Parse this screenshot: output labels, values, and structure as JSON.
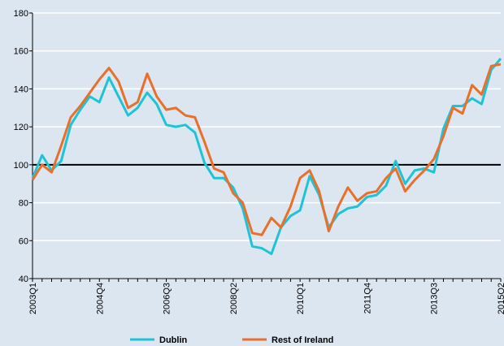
{
  "chart_data": {
    "type": "line",
    "categories": [
      "2003Q1",
      null,
      null,
      null,
      null,
      null,
      null,
      "2004Q4",
      null,
      null,
      null,
      null,
      null,
      null,
      "2006Q3",
      null,
      null,
      null,
      null,
      null,
      null,
      "2008Q2",
      null,
      null,
      null,
      null,
      null,
      null,
      "2010Q1",
      null,
      null,
      null,
      null,
      null,
      null,
      "2011Q4",
      null,
      null,
      null,
      null,
      null,
      null,
      "2013Q3",
      null,
      null,
      null,
      null,
      null,
      null,
      "2015Q2"
    ],
    "series": [
      {
        "name": "Dublin",
        "color": "#1ec3d6",
        "values": [
          93,
          105,
          97,
          102,
          121,
          129,
          136,
          133,
          146,
          136,
          126,
          130,
          138,
          132,
          121,
          120,
          121,
          117,
          101,
          93,
          93,
          88,
          77,
          57,
          56,
          53,
          67,
          73,
          76,
          94,
          84,
          67,
          74,
          77,
          78,
          83,
          84,
          89,
          102,
          90,
          97,
          98,
          96,
          119,
          131,
          131,
          135,
          132,
          150,
          156
        ]
      },
      {
        "name": "Rest of Ireland",
        "color": "#e8702a",
        "values": [
          92,
          100,
          96,
          110,
          125,
          131,
          138,
          145,
          151,
          144,
          130,
          133,
          148,
          136,
          129,
          130,
          126,
          125,
          112,
          98,
          96,
          85,
          80,
          64,
          63,
          72,
          67,
          78,
          93,
          97,
          86,
          65,
          78,
          88,
          81,
          85,
          86,
          93,
          98,
          86,
          92,
          97,
          103,
          115,
          130,
          127,
          142,
          137,
          152,
          153
        ]
      }
    ],
    "ylim": [
      40,
      180
    ],
    "yticks": [
      40,
      60,
      80,
      100,
      120,
      140,
      160,
      180
    ],
    "reference_line": 100,
    "grid": true,
    "legend": "bottom"
  }
}
